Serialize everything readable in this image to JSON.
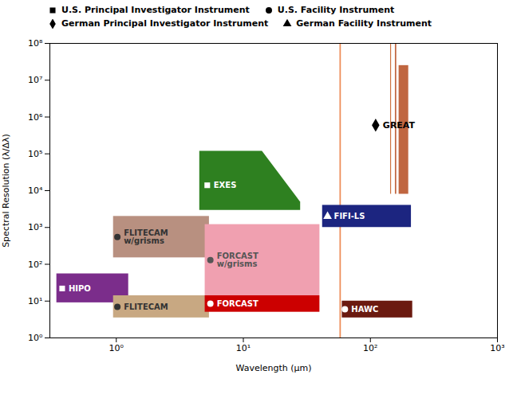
{
  "chart_data": {
    "type": "regions",
    "xlabel": "Wavelength (μm)",
    "ylabel": "Spectral Resolution (λ/Δλ)",
    "log": true,
    "xlim": [
      0.3,
      1000
    ],
    "ylim": [
      1,
      100000000
    ],
    "xticks": [
      {
        "value": 1,
        "label": "10⁰"
      },
      {
        "value": 10,
        "label": "10¹"
      },
      {
        "value": 100,
        "label": "10²"
      },
      {
        "value": 1000,
        "label": "10³"
      }
    ],
    "yticks": [
      {
        "value": 1,
        "label": "10⁰"
      },
      {
        "value": 10,
        "label": "10¹"
      },
      {
        "value": 100,
        "label": "10²"
      },
      {
        "value": 1000,
        "label": "10³"
      },
      {
        "value": 10000,
        "label": "10⁴"
      },
      {
        "value": 100000,
        "label": "10⁵"
      },
      {
        "value": 1000000,
        "label": "10⁶"
      },
      {
        "value": 10000000,
        "label": "10⁷"
      },
      {
        "value": 100000000,
        "label": "10⁸"
      }
    ],
    "grid": false,
    "legend": "top",
    "bands": [
      {
        "x1": 57.5,
        "x2": 59.0,
        "y1": 1.0,
        "y2": 100000000,
        "color": "#E87030"
      },
      {
        "x1": 144.0,
        "x2": 146.5,
        "y1": 8000,
        "y2": 100000000,
        "color": "#C05010"
      },
      {
        "x1": 157.0,
        "x2": 161.0,
        "y1": 8000,
        "y2": 100000000,
        "color": "#B04010"
      },
      {
        "x1": 168.0,
        "x2": 200.0,
        "y1": 8000,
        "y2": 25000000,
        "color": "#B04010"
      }
    ],
    "instruments": [
      {
        "name": "FLITECAM\nw/grisms",
        "color": "#B89080",
        "text_color": "#333333",
        "marker": "circle",
        "x1": 0.95,
        "x2": 5.4,
        "y1": 150,
        "y2": 2000,
        "label_x": 1.02,
        "label_y": 550
      },
      {
        "name": "FORCAST\nw/grisms",
        "color": "#F0A0B0",
        "text_color": "#555555",
        "marker": "circle",
        "x1": 5.0,
        "x2": 40.0,
        "y1": 14,
        "y2": 1200,
        "label_x": 5.5,
        "label_y": 130
      },
      {
        "name": "HIPO",
        "color": "#7B2D8B",
        "text_color": "white",
        "marker": "square",
        "x1": 0.34,
        "x2": 1.25,
        "y1": 9,
        "y2": 55,
        "label_x": 0.375,
        "label_y": 22
      },
      {
        "name": "FLITECAM",
        "color": "#C8A882",
        "text_color": "#333333",
        "marker": "circle",
        "x1": 0.95,
        "x2": 5.4,
        "y1": 3.5,
        "y2": 14,
        "label_x": 1.02,
        "label_y": 7
      },
      {
        "name": "EXES",
        "color": "#2E8020",
        "text_color": "white",
        "marker": "square",
        "polygon": [
          [
            4.5,
            3000
          ],
          [
            4.5,
            120000
          ],
          [
            14.0,
            120000
          ],
          [
            28.0,
            5000
          ],
          [
            28.0,
            3000
          ]
        ],
        "label_x": 5.2,
        "label_y": 14000
      },
      {
        "name": "FORCAST",
        "color": "#CC0000",
        "text_color": "white",
        "marker": "circle",
        "x1": 5.0,
        "x2": 40.0,
        "y1": 5,
        "y2": 14,
        "label_x": 5.5,
        "label_y": 8.5
      },
      {
        "name": "FIFI-LS",
        "color": "#1C2580",
        "text_color": "white",
        "marker": "triangle",
        "x1": 42.0,
        "x2": 210.0,
        "y1": 1000,
        "y2": 4000,
        "label_x": 46.0,
        "label_y": 2000
      },
      {
        "name": "HAWC",
        "color": "#6B1A10",
        "text_color": "white",
        "marker": "circle",
        "x1": 60.0,
        "x2": 215.0,
        "y1": 3.5,
        "y2": 10,
        "label_x": 63.0,
        "label_y": 6
      }
    ],
    "points": [
      {
        "name": "GREAT",
        "x": 110.0,
        "y": 600000,
        "marker": "diamond",
        "color": "black"
      }
    ],
    "legend_items": [
      {
        "label": "U.S. Principal Investigator Instrument",
        "marker": "square",
        "color": "black"
      },
      {
        "label": "U.S. Facility Instrument",
        "marker": "circle",
        "color": "black"
      },
      {
        "label": "German Principal Investigator Instrument",
        "marker": "diamond",
        "color": "black"
      },
      {
        "label": "German Facility Instrument",
        "marker": "triangle",
        "color": "black"
      }
    ]
  }
}
